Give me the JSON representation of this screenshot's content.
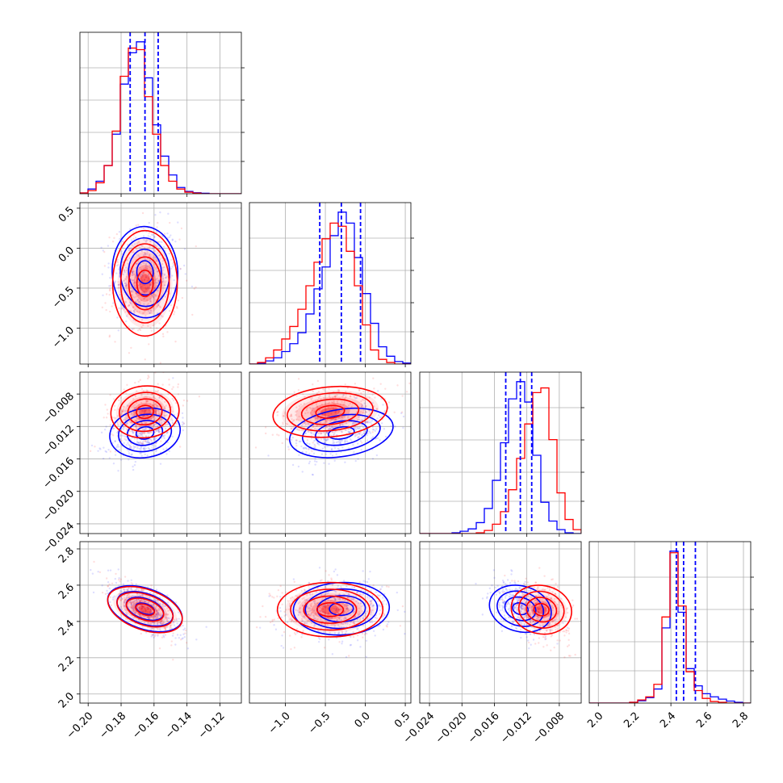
{
  "colors": {
    "blue": "#0000ff",
    "red": "#ff0000",
    "grid": "#b0b0b0",
    "frame": "#000000"
  },
  "params": [
    {
      "ticks": [
        "−0.20",
        "−0.18",
        "−0.16",
        "−0.14",
        "−0.12"
      ],
      "tick_values": [
        -0.2,
        -0.18,
        -0.16,
        -0.14,
        -0.12
      ],
      "range": [
        -0.205,
        -0.107
      ]
    },
    {
      "ticks": [
        "−1.0",
        "−0.5",
        "0.0",
        "0.5"
      ],
      "tick_values": [
        -1.0,
        -0.5,
        0.0,
        0.5
      ],
      "range": [
        -1.45,
        0.57
      ]
    },
    {
      "ticks": [
        "−0.024",
        "−0.020",
        "−0.016",
        "−0.012",
        "−0.008"
      ],
      "tick_values": [
        -0.024,
        -0.02,
        -0.016,
        -0.012,
        -0.008
      ],
      "range": [
        -0.0252,
        -0.0053
      ]
    },
    {
      "ticks": [
        "2.0",
        "2.2",
        "2.4",
        "2.6",
        "2.8"
      ],
      "tick_values": [
        2.0,
        2.2,
        2.4,
        2.6,
        2.8
      ],
      "range": [
        1.95,
        2.84
      ]
    }
  ],
  "chart_data": {
    "type": "corner",
    "grid": true,
    "series": [
      {
        "color": "blue",
        "quantiles": [
          [
            -0.1745,
            -0.1655,
            -0.1575
          ],
          [
            -0.57,
            -0.3,
            -0.06
          ],
          [
            -0.0146,
            -0.0128,
            -0.0114
          ],
          [
            2.43,
            2.47,
            2.535
          ]
        ],
        "histograms": [
          {
            "edges_range": [
              -0.205,
              -0.107
            ],
            "counts": [
              0.5,
              3,
              8,
              18,
              38,
              70,
              90,
              97,
              74,
              44,
              24,
              12,
              4,
              1.5,
              0.6,
              0.3,
              0,
              0,
              0,
              0
            ]
          },
          {
            "edges_range": [
              -1.45,
              0.57
            ],
            "counts": [
              0,
              0.6,
              2,
              4,
              8,
              13,
              20,
              32,
              48,
              62,
              82,
              97,
              90,
              68,
              45,
              26,
              11,
              5,
              1.6,
              0.6
            ]
          },
          {
            "edges_range": [
              -0.0252,
              -0.0053
            ],
            "counts": [
              0,
              0,
              0,
              0,
              0.5,
              1.5,
              3,
              7,
              16,
              34,
              58,
              86,
              97,
              84,
              50,
              20,
              8,
              2.5,
              0.5,
              0
            ]
          },
          {
            "edges_range": [
              1.95,
              2.84
            ],
            "counts": [
              0,
              0,
              0,
              0,
              0,
              0.5,
              1.5,
              3.5,
              9,
              48,
              97,
              58,
              22,
              11,
              6,
              4,
              2.5,
              1.3,
              0.5,
              0
            ]
          }
        ],
        "correlations": [
          [
            1,
            0.05,
            0.35,
            -0.75
          ],
          [
            0.05,
            1,
            0.45,
            0.12
          ],
          [
            0.35,
            0.45,
            1,
            -0.5
          ],
          [
            -0.75,
            0.12,
            -0.5,
            1
          ]
        ]
      },
      {
        "color": "red",
        "histograms": [
          {
            "edges_range": [
              -0.205,
              -0.107
            ],
            "counts": [
              0.5,
              2,
              7,
              18,
              40,
              75,
              93,
              92,
              62,
              38,
              18,
              8,
              3,
              1,
              0.4,
              0,
              0,
              0,
              0,
              0
            ]
          },
          {
            "edges_range": [
              -1.45,
              0.57
            ],
            "counts": [
              0,
              1,
              4,
              9,
              16,
              24,
              35,
              50,
              65,
              80,
              90,
              88,
              72,
              50,
              25,
              9,
              3,
              1,
              0,
              0
            ]
          },
          {
            "edges_range": [
              -0.0252,
              -0.0053
            ],
            "counts": [
              0,
              0,
              0,
              0,
              0,
              0,
              0,
              0.5,
              2,
              6,
              14,
              28,
              48,
              70,
              90,
              93,
              60,
              26,
              9,
              2.5
            ]
          },
          {
            "edges_range": [
              1.95,
              2.84
            ],
            "counts": [
              0,
              0,
              0,
              0,
              0,
              0.5,
              2,
              4,
              12,
              55,
              96,
              62,
              20,
              8,
              3,
              1,
              0.5,
              0,
              0,
              0
            ]
          }
        ],
        "means": [
          -0.1655,
          -0.44,
          -0.0102,
          2.465
        ],
        "stds": [
          0.0098,
          0.33,
          0.0017,
          0.075
        ],
        "correlations": [
          [
            1,
            0.0,
            0.2,
            -0.75
          ],
          [
            0.0,
            1,
            0.3,
            0.0
          ],
          [
            0.2,
            0.3,
            1,
            -0.35
          ],
          [
            -0.75,
            0.0,
            -0.35,
            1
          ]
        ]
      }
    ],
    "blue_means": [
      -0.1655,
      -0.3,
      -0.0128,
      2.47
    ],
    "blue_stds": [
      0.0098,
      0.29,
      0.0017,
      0.075
    ]
  }
}
